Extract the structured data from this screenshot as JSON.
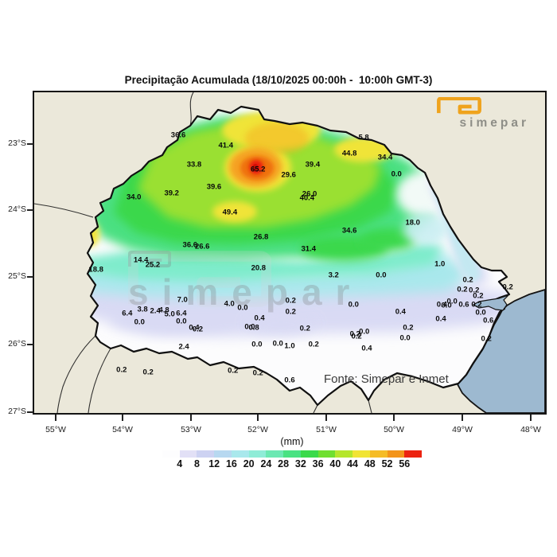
{
  "title": "Precipitação Acumulada (18/10/2025 00:00h -  10:00h GMT-3)",
  "logo": {
    "brand": "simepar"
  },
  "watermark": {
    "brand": "simepar"
  },
  "source_note": "Fonte: Simepar e Inmet",
  "axes": {
    "lat_ticks": [
      "23°S",
      "24°S",
      "25°S",
      "26°S",
      "27°S"
    ],
    "lon_ticks": [
      "55°W",
      "54°W",
      "53°W",
      "52°W",
      "51°W",
      "50°W",
      "49°W",
      "48°W"
    ]
  },
  "colorbar": {
    "unit_label": "(mm)",
    "tick_values": [
      4,
      8,
      12,
      16,
      20,
      24,
      28,
      32,
      36,
      40,
      44,
      48,
      52,
      56
    ],
    "colors": [
      "#fdfdfe",
      "#e2e0f6",
      "#cdd2f2",
      "#b7d8f0",
      "#a9e8ec",
      "#8fecd7",
      "#6ce8b2",
      "#49e282",
      "#3ada4a",
      "#6fdf30",
      "#b5e62c",
      "#f1e434",
      "#f5bc26",
      "#f3941a",
      "#ec2310"
    ]
  },
  "map_colors": {
    "land_background": "#ebe8da",
    "ocean": "#9db9d0",
    "no_rain": "#fcfcfd",
    "max_core_red": "#ea1b0e",
    "logo_orange": "#efa31d"
  },
  "chart_data": {
    "type": "heatmap",
    "title": "Precipitação Acumulada (18/10/2025 00:00h - 10:00h GMT-3)",
    "units": "mm",
    "colorbar_ticks_mm": [
      4,
      8,
      12,
      16,
      20,
      24,
      28,
      32,
      36,
      40,
      44,
      48,
      52,
      56
    ],
    "lat_axis": [
      "23°S",
      "24°S",
      "25°S",
      "26°S",
      "27°S"
    ],
    "lon_axis": [
      "55°W",
      "54°W",
      "53°W",
      "52°W",
      "51°W",
      "50°W",
      "49°W",
      "48°W"
    ],
    "max_station_value_mm": 65.2,
    "station_position_units": "percent of map frame (x left→right, y top→bottom)",
    "stations": [
      {
        "v": "36.6",
        "x": 28.2,
        "y": 13.4
      },
      {
        "v": "5.8",
        "x": 64.5,
        "y": 14.2
      },
      {
        "v": "41.4",
        "x": 37.5,
        "y": 16.6
      },
      {
        "v": "44.8",
        "x": 61.7,
        "y": 19.1
      },
      {
        "v": "34.4",
        "x": 68.7,
        "y": 20.3
      },
      {
        "v": "33.8",
        "x": 31.3,
        "y": 22.6
      },
      {
        "v": "39.4",
        "x": 54.5,
        "y": 22.6
      },
      {
        "v": "65.2",
        "x": 43.8,
        "y": 24.1
      },
      {
        "v": "29.6",
        "x": 49.8,
        "y": 25.8
      },
      {
        "v": "0.0",
        "x": 70.9,
        "y": 25.6
      },
      {
        "v": "39.6",
        "x": 35.2,
        "y": 29.5
      },
      {
        "v": "39.2",
        "x": 26.9,
        "y": 31.5
      },
      {
        "v": "34.0",
        "x": 19.5,
        "y": 32.8
      },
      {
        "v": "26.0",
        "x": 53.9,
        "y": 31.8
      },
      {
        "v": "40.4",
        "x": 53.4,
        "y": 33.0
      },
      {
        "v": "49.4",
        "x": 38.3,
        "y": 37.5
      },
      {
        "v": "18.0",
        "x": 74.1,
        "y": 40.7
      },
      {
        "v": "34.6",
        "x": 61.7,
        "y": 43.2
      },
      {
        "v": "26.8",
        "x": 44.4,
        "y": 45.2
      },
      {
        "v": "36.6",
        "x": 30.5,
        "y": 47.6
      },
      {
        "v": "26.6",
        "x": 32.9,
        "y": 48.1
      },
      {
        "v": "31.4",
        "x": 53.7,
        "y": 48.9
      },
      {
        "v": "14.4",
        "x": 20.9,
        "y": 52.4
      },
      {
        "v": "25.2",
        "x": 23.2,
        "y": 53.8
      },
      {
        "v": "18.8",
        "x": 12.1,
        "y": 55.3
      },
      {
        "v": "20.8",
        "x": 43.9,
        "y": 54.8
      },
      {
        "v": "1.0",
        "x": 79.4,
        "y": 53.6
      },
      {
        "v": "3.2",
        "x": 58.6,
        "y": 57.1
      },
      {
        "v": "0.0",
        "x": 67.9,
        "y": 57.1
      },
      {
        "v": "0.2",
        "x": 84.9,
        "y": 58.6
      },
      {
        "v": "0.2",
        "x": 83.8,
        "y": 61.5
      },
      {
        "v": "0.2",
        "x": 86.1,
        "y": 61.8
      },
      {
        "v": "0.2",
        "x": 92.7,
        "y": 60.8
      },
      {
        "v": "0.2",
        "x": 86.9,
        "y": 63.5
      },
      {
        "v": "7.0",
        "x": 29.0,
        "y": 64.8
      },
      {
        "v": "4.0",
        "x": 38.2,
        "y": 66.0
      },
      {
        "v": "0.0",
        "x": 40.8,
        "y": 67.2
      },
      {
        "v": "0.2",
        "x": 50.2,
        "y": 65.0
      },
      {
        "v": "0.2",
        "x": 50.2,
        "y": 68.5
      },
      {
        "v": "0.0",
        "x": 62.5,
        "y": 66.3
      },
      {
        "v": "0.0",
        "x": 81.8,
        "y": 65.3
      },
      {
        "v": "0.4",
        "x": 79.8,
        "y": 66.3
      },
      {
        "v": "0.0",
        "x": 80.7,
        "y": 66.5
      },
      {
        "v": "0.6",
        "x": 84.1,
        "y": 66.3
      },
      {
        "v": "0.2",
        "x": 86.6,
        "y": 66.3
      },
      {
        "v": "3.8",
        "x": 21.2,
        "y": 67.7
      },
      {
        "v": "2.4",
        "x": 23.7,
        "y": 68.2
      },
      {
        "v": "4.8",
        "x": 25.4,
        "y": 68.0
      },
      {
        "v": "5.0",
        "x": 26.5,
        "y": 69.2
      },
      {
        "v": "6.4",
        "x": 28.8,
        "y": 69.0
      },
      {
        "v": "6.4",
        "x": 18.2,
        "y": 69.0
      },
      {
        "v": "0.4",
        "x": 71.7,
        "y": 68.5
      },
      {
        "v": "0.0",
        "x": 87.4,
        "y": 68.7
      },
      {
        "v": "0.4",
        "x": 44.1,
        "y": 70.5
      },
      {
        "v": "0.0",
        "x": 20.6,
        "y": 71.7
      },
      {
        "v": "0.0",
        "x": 28.8,
        "y": 71.5
      },
      {
        "v": "0.4",
        "x": 79.6,
        "y": 70.7
      },
      {
        "v": "0.4",
        "x": 31.3,
        "y": 73.4
      },
      {
        "v": "0.2",
        "x": 32.0,
        "y": 73.9
      },
      {
        "v": "0.0",
        "x": 42.2,
        "y": 73.2
      },
      {
        "v": "0.8",
        "x": 43.0,
        "y": 73.4
      },
      {
        "v": "0.2",
        "x": 53.0,
        "y": 73.7
      },
      {
        "v": "0.2",
        "x": 73.2,
        "y": 73.4
      },
      {
        "v": "0.6",
        "x": 88.9,
        "y": 71.2
      },
      {
        "v": "0.0",
        "x": 64.6,
        "y": 74.7
      },
      {
        "v": "0.2",
        "x": 62.8,
        "y": 75.4
      },
      {
        "v": "0.2",
        "x": 63.1,
        "y": 76.2
      },
      {
        "v": "0.0",
        "x": 72.6,
        "y": 76.7
      },
      {
        "v": "0.2",
        "x": 88.5,
        "y": 76.9
      },
      {
        "v": "2.4",
        "x": 29.3,
        "y": 79.4
      },
      {
        "v": "0.0",
        "x": 43.6,
        "y": 78.7
      },
      {
        "v": "0.0",
        "x": 47.7,
        "y": 78.4
      },
      {
        "v": "1.0",
        "x": 50.0,
        "y": 79.2
      },
      {
        "v": "0.2",
        "x": 54.7,
        "y": 78.7
      },
      {
        "v": "0.4",
        "x": 65.1,
        "y": 79.9
      },
      {
        "v": "0.2",
        "x": 17.1,
        "y": 86.6
      },
      {
        "v": "0.2",
        "x": 22.3,
        "y": 87.3
      },
      {
        "v": "0.2",
        "x": 38.9,
        "y": 86.8
      },
      {
        "v": "0.2",
        "x": 43.8,
        "y": 87.6
      },
      {
        "v": "0.6",
        "x": 50.0,
        "y": 89.8
      }
    ]
  }
}
